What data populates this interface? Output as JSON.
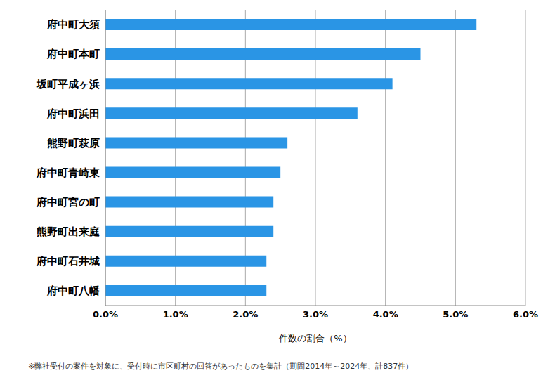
{
  "chart_data": {
    "type": "bar",
    "orientation": "horizontal",
    "categories": [
      "府中町大須",
      "府中町本町",
      "坂町平成ヶ浜",
      "府中町浜田",
      "熊野町萩原",
      "府中町青崎東",
      "府中町宮の町",
      "熊野町出来庭",
      "府中町石井城",
      "府中町八幡"
    ],
    "values": [
      5.3,
      4.5,
      4.1,
      3.6,
      2.6,
      2.5,
      2.4,
      2.4,
      2.3,
      2.3
    ],
    "color": "#2a95e5",
    "x_label": "件数の割合（%）",
    "xlim": [
      0,
      6
    ],
    "xticks": [
      {
        "value": 0,
        "label": "0.0%"
      },
      {
        "value": 1,
        "label": "1.0%"
      },
      {
        "value": 2,
        "label": "2.0%"
      },
      {
        "value": 3,
        "label": "3.0%"
      },
      {
        "value": 4,
        "label": "4.0%"
      },
      {
        "value": 5,
        "label": "5.0%"
      },
      {
        "value": 6,
        "label": "6.0%"
      }
    ],
    "grid": true,
    "annotation": "※弊社受付の案件を対象に、受付時に市区町村の回答があったものを集計（期間2014年～2024年、計837件）"
  }
}
